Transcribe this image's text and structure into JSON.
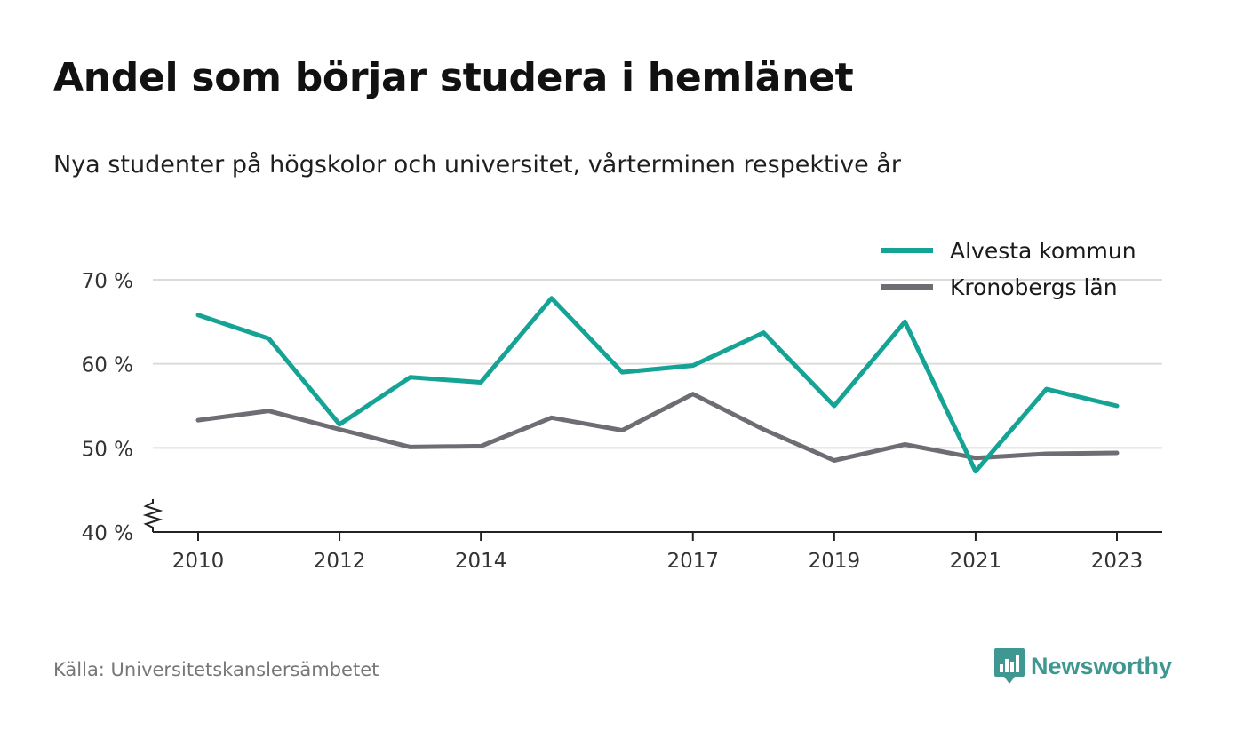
{
  "title": "Andel som börjar studera i hemlänet",
  "subtitle": "Nya studenter på högskolor och universitet, vårterminen respektive år",
  "source": "Källa: Universitetskanslersämbetet",
  "brand": {
    "name": "Newsworthy",
    "icon": "newsworthy-logo-icon",
    "color": "#3e9891"
  },
  "chart_data": {
    "type": "line",
    "x": [
      2010,
      2011,
      2012,
      2013,
      2014,
      2015,
      2016,
      2017,
      2018,
      2019,
      2020,
      2021,
      2022,
      2023
    ],
    "x_tick_labels": [
      "2010",
      "2012",
      "2014",
      "2017",
      "2019",
      "2021",
      "2023"
    ],
    "y_ticks": [
      40,
      50,
      60,
      70
    ],
    "y_tick_labels": [
      "40 %",
      "50 %",
      "60 %",
      "70 %"
    ],
    "ylim": [
      40,
      70
    ],
    "y_axis_break": true,
    "grid": true,
    "legend_position": "top-right",
    "series": [
      {
        "name": "Alvesta kommun",
        "color": "#14a394",
        "values": [
          65.8,
          63.0,
          52.8,
          58.4,
          57.8,
          67.8,
          59.0,
          59.8,
          63.7,
          55.0,
          65.0,
          47.2,
          57.0,
          55.0
        ]
      },
      {
        "name": "Kronobergs län",
        "color": "#6e6d73",
        "values": [
          53.3,
          54.4,
          52.2,
          50.1,
          50.2,
          53.6,
          52.1,
          56.4,
          52.2,
          48.5,
          50.4,
          48.8,
          49.3,
          49.4
        ]
      }
    ]
  }
}
